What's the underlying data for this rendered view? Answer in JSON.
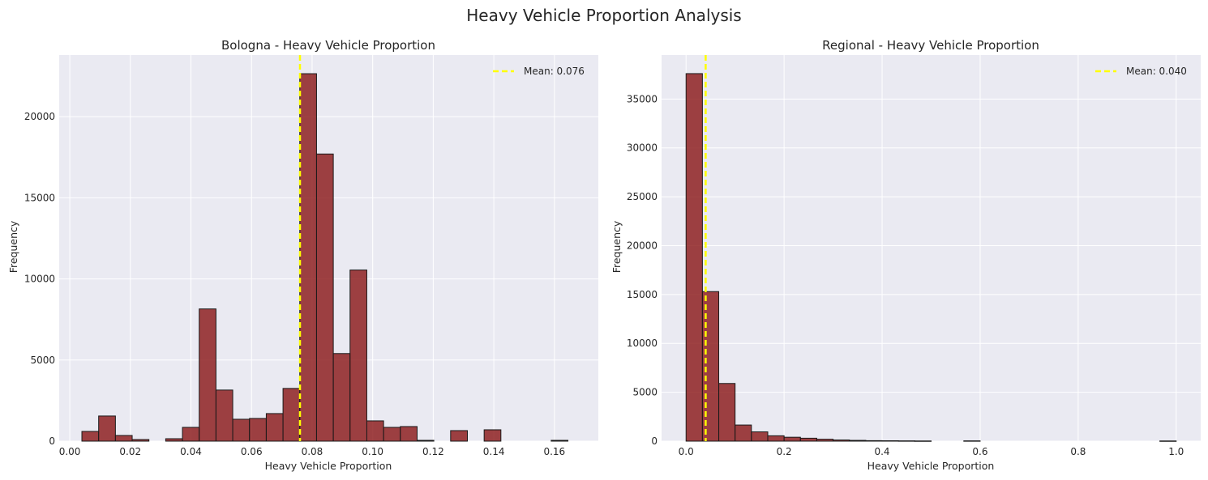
{
  "title": "Heavy Vehicle Proportion Analysis",
  "colors": {
    "background": "#eaeaf2",
    "grid": "#ffffff",
    "bar_fill": "#8b1a1a",
    "bar_edge": "#1a1a1a",
    "mean_line": "#ffff00"
  },
  "chart_data": [
    {
      "type": "bar",
      "title": "Bologna - Heavy Vehicle Proportion",
      "xlabel": "Heavy Vehicle Proportion",
      "ylabel": "Frequency",
      "xlim": [
        -0.0035,
        0.1745
      ],
      "ylim": [
        0,
        23800
      ],
      "xticks": [
        0.0,
        0.02,
        0.04,
        0.06,
        0.08,
        0.1,
        0.12,
        0.14,
        0.16
      ],
      "xtick_labels": [
        "0.00",
        "0.02",
        "0.04",
        "0.06",
        "0.08",
        "0.10",
        "0.12",
        "0.14",
        "0.16"
      ],
      "yticks": [
        0,
        5000,
        10000,
        15000,
        20000
      ],
      "ytick_labels": [
        "0",
        "5000",
        "10000",
        "15000",
        "20000"
      ],
      "grid": true,
      "legend_position": "top-right",
      "mean": {
        "value": 0.076,
        "label": "Mean: 0.076"
      },
      "bin_edges": [
        0.004,
        0.00953,
        0.01507,
        0.0206,
        0.02613,
        0.03167,
        0.0372,
        0.04273,
        0.04827,
        0.0538,
        0.05933,
        0.06487,
        0.0704,
        0.07593,
        0.08147,
        0.087,
        0.09253,
        0.09807,
        0.1036,
        0.10913,
        0.11467,
        0.1202,
        0.12573,
        0.13127,
        0.1368,
        0.14233,
        0.14787,
        0.1534,
        0.15893,
        0.16447,
        0.17
      ],
      "values": [
        600,
        1550,
        350,
        100,
        0,
        150,
        850,
        8150,
        3150,
        1350,
        1400,
        1700,
        3250,
        22650,
        17700,
        5400,
        10550,
        1250,
        850,
        900,
        50,
        0,
        650,
        0,
        700,
        0,
        0,
        0,
        50,
        0
      ]
    },
    {
      "type": "bar",
      "title": "Regional - Heavy Vehicle Proportion",
      "xlabel": "Heavy Vehicle Proportion",
      "ylabel": "Frequency",
      "xlim": [
        -0.05,
        1.05
      ],
      "ylim": [
        0,
        39500
      ],
      "xticks": [
        0.0,
        0.2,
        0.4,
        0.6,
        0.8,
        1.0
      ],
      "xtick_labels": [
        "0.0",
        "0.2",
        "0.4",
        "0.6",
        "0.8",
        "1.0"
      ],
      "yticks": [
        0,
        5000,
        10000,
        15000,
        20000,
        25000,
        30000,
        35000
      ],
      "ytick_labels": [
        "0",
        "5000",
        "10000",
        "15000",
        "20000",
        "25000",
        "30000",
        "35000"
      ],
      "grid": true,
      "legend_position": "top-right",
      "mean": {
        "value": 0.04,
        "label": "Mean: 0.040"
      },
      "bin_edges": [
        0.0,
        0.03333,
        0.06667,
        0.1,
        0.13333,
        0.16667,
        0.2,
        0.23333,
        0.26667,
        0.3,
        0.33333,
        0.36667,
        0.4,
        0.43333,
        0.46667,
        0.5,
        0.53333,
        0.56667,
        0.6,
        0.63333,
        0.66667,
        0.7,
        0.73333,
        0.76667,
        0.8,
        0.83333,
        0.86667,
        0.9,
        0.93333,
        0.96667,
        1.0
      ],
      "values": [
        37600,
        15300,
        5900,
        1650,
        950,
        550,
        400,
        300,
        200,
        120,
        80,
        50,
        40,
        30,
        20,
        0,
        0,
        30,
        0,
        0,
        0,
        0,
        0,
        0,
        0,
        0,
        0,
        0,
        0,
        20
      ]
    }
  ]
}
